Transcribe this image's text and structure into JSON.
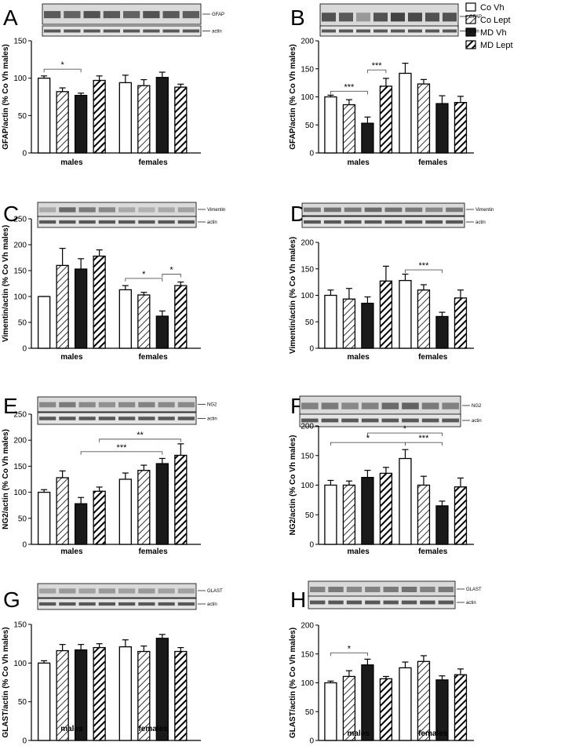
{
  "legend": [
    "Co Vh",
    "Co Lept",
    "MD Vh",
    "MD Lept"
  ],
  "colors": {
    "bar_stroke": "#000000",
    "md_fill": "#1a1a1a",
    "blot_band": "#3a3a3a",
    "blot_bg": "#d9d9d9"
  },
  "chart_data": [
    {
      "panel": "A",
      "type": "bar",
      "protein_label": "GFAP",
      "actin_label": "actin",
      "ylabel": "GFAP/actin (% Co Vh males)",
      "ylim": [
        0,
        150
      ],
      "yticks": [
        0,
        50,
        100,
        150
      ],
      "categories": [
        "males",
        "females"
      ],
      "series": [
        {
          "name": "Co Vh",
          "values": [
            100,
            94
          ],
          "errors": [
            3,
            10
          ]
        },
        {
          "name": "Co Lept",
          "values": [
            82,
            90
          ],
          "errors": [
            5,
            8
          ]
        },
        {
          "name": "MD Vh",
          "values": [
            77,
            101
          ],
          "errors": [
            3,
            7
          ]
        },
        {
          "name": "MD Lept",
          "values": [
            97,
            88
          ],
          "errors": [
            6,
            4
          ]
        }
      ],
      "significance": [
        {
          "group": 0,
          "from": 0,
          "to": 2,
          "label": "*",
          "y": 112
        }
      ],
      "blot_bands": [
        0.8,
        0.75,
        0.85,
        0.8,
        0.75,
        0.85,
        0.8,
        0.78
      ]
    },
    {
      "panel": "B",
      "type": "bar",
      "protein_label": "GFAP",
      "actin_label": "actin",
      "ylabel": "GFAP/actin (% Co Vh males)",
      "ylim": [
        0,
        200
      ],
      "yticks": [
        0,
        50,
        100,
        150,
        200
      ],
      "categories": [
        "males",
        "females"
      ],
      "series": [
        {
          "name": "Co Vh",
          "values": [
            100,
            142
          ],
          "errors": [
            3,
            18
          ]
        },
        {
          "name": "Co Lept",
          "values": [
            86,
            123
          ],
          "errors": [
            9,
            8
          ]
        },
        {
          "name": "MD Vh",
          "values": [
            53,
            88
          ],
          "errors": [
            11,
            14
          ]
        },
        {
          "name": "MD Lept",
          "values": [
            119,
            90
          ],
          "errors": [
            14,
            11
          ]
        }
      ],
      "significance": [
        {
          "group": 0,
          "from": 0,
          "to": 2,
          "label": "***",
          "y": 110
        },
        {
          "group": 0,
          "from": 2,
          "to": 3,
          "label": "***",
          "y": 148
        }
      ],
      "blot_bands": [
        0.85,
        0.8,
        0.4,
        0.85,
        0.95,
        0.9,
        0.85,
        0.85
      ]
    },
    {
      "panel": "C",
      "type": "bar",
      "protein_label": "Vimentin",
      "actin_label": "actin",
      "ylabel": "Vimentin/actin (% Co Vh males)",
      "ylim": [
        0,
        250
      ],
      "yticks": [
        0,
        50,
        100,
        150,
        200,
        250
      ],
      "categories": [
        "males",
        "females"
      ],
      "series": [
        {
          "name": "Co Vh",
          "values": [
            100,
            113
          ],
          "errors": [
            0,
            8
          ]
        },
        {
          "name": "Co Lept",
          "values": [
            160,
            103
          ],
          "errors": [
            33,
            5
          ]
        },
        {
          "name": "MD Vh",
          "values": [
            153,
            62
          ],
          "errors": [
            20,
            10
          ]
        },
        {
          "name": "MD Lept",
          "values": [
            178,
            121
          ],
          "errors": [
            12,
            7
          ]
        }
      ],
      "significance": [
        {
          "group": 1,
          "from": 0,
          "to": 2,
          "label": "*",
          "y": 135
        },
        {
          "group": 1,
          "from": 2,
          "to": 3,
          "label": "*",
          "y": 143
        }
      ],
      "blot_bands": [
        0.3,
        0.7,
        0.6,
        0.5,
        0.3,
        0.25,
        0.3,
        0.35
      ]
    },
    {
      "panel": "D",
      "type": "bar",
      "protein_label": "Vimentin",
      "actin_label": "actin",
      "ylabel": "Vimentin/actin (%  Co Vh males)",
      "ylim": [
        0,
        200
      ],
      "yticks": [
        0,
        50,
        100,
        150,
        200
      ],
      "categories": [
        "males",
        "females"
      ],
      "series": [
        {
          "name": "Co Vh",
          "values": [
            100,
            128
          ],
          "errors": [
            10,
            12
          ]
        },
        {
          "name": "Co Lept",
          "values": [
            93,
            110
          ],
          "errors": [
            20,
            10
          ]
        },
        {
          "name": "MD Vh",
          "values": [
            85,
            60
          ],
          "errors": [
            12,
            8
          ]
        },
        {
          "name": "MD Lept",
          "values": [
            127,
            95
          ],
          "errors": [
            28,
            15
          ]
        }
      ],
      "significance": [
        {
          "group": 1,
          "from": 0,
          "to": 2,
          "label": "***",
          "y": 148
        }
      ],
      "blot_bands": [
        0.6,
        0.65,
        0.6,
        0.7,
        0.65,
        0.6,
        0.5,
        0.6
      ]
    },
    {
      "panel": "E",
      "type": "bar",
      "protein_label": "NG2",
      "actin_label": "actin",
      "ylabel": "NG2/actin (% Co Vh males)",
      "ylim": [
        0,
        250
      ],
      "yticks": [
        0,
        50,
        100,
        150,
        200,
        250
      ],
      "categories": [
        "males",
        "females"
      ],
      "series": [
        {
          "name": "Co Vh",
          "values": [
            100,
            125
          ],
          "errors": [
            5,
            12
          ]
        },
        {
          "name": "Co Lept",
          "values": [
            128,
            142
          ],
          "errors": [
            13,
            10
          ]
        },
        {
          "name": "MD Vh",
          "values": [
            78,
            155
          ],
          "errors": [
            12,
            10
          ]
        },
        {
          "name": "MD Lept",
          "values": [
            102,
            171
          ],
          "errors": [
            8,
            22
          ]
        }
      ],
      "significance": [
        {
          "cross": true,
          "from": [
            0,
            2
          ],
          "to": [
            1,
            2
          ],
          "label": "***",
          "y": 178
        },
        {
          "cross": true,
          "from": [
            0,
            3
          ],
          "to": [
            1,
            3
          ],
          "label": "**",
          "y": 202
        }
      ],
      "blot_bands": [
        0.5,
        0.6,
        0.5,
        0.45,
        0.5,
        0.55,
        0.5,
        0.5
      ]
    },
    {
      "panel": "F",
      "type": "bar",
      "protein_label": "NG2",
      "actin_label": "actin",
      "ylabel": "NG2/actin (%  Co Vh males)",
      "ylim": [
        0,
        200
      ],
      "yticks": [
        0,
        50,
        100,
        150,
        200
      ],
      "categories": [
        "males",
        "females"
      ],
      "series": [
        {
          "name": "Co Vh",
          "values": [
            100,
            145
          ],
          "errors": [
            8,
            15
          ]
        },
        {
          "name": "Co Lept",
          "values": [
            100,
            100
          ],
          "errors": [
            7,
            15
          ]
        },
        {
          "name": "MD Vh",
          "values": [
            113,
            65
          ],
          "errors": [
            12,
            8
          ]
        },
        {
          "name": "MD Lept",
          "values": [
            120,
            97
          ],
          "errors": [
            10,
            15
          ]
        }
      ],
      "significance": [
        {
          "cross": true,
          "from": [
            0,
            0
          ],
          "to": [
            1,
            0
          ],
          "label": "*",
          "y": 172
        },
        {
          "cross": true,
          "from": [
            0,
            2
          ],
          "to": [
            1,
            2
          ],
          "label": "*",
          "y": 188
        },
        {
          "group": 1,
          "from": 0,
          "to": 2,
          "label": "***",
          "y": 172
        }
      ],
      "blot_bands": [
        0.55,
        0.6,
        0.5,
        0.55,
        0.7,
        0.75,
        0.6,
        0.55
      ]
    },
    {
      "panel": "G",
      "type": "bar",
      "protein_label": "GLAST",
      "actin_label": "actin",
      "ylabel": "GLAST/actin (% Co Vh males)",
      "ylim": [
        0,
        150
      ],
      "yticks": [
        0,
        50,
        100,
        150
      ],
      "categories": [
        "males",
        "females"
      ],
      "series": [
        {
          "name": "Co Vh",
          "values": [
            100,
            121
          ],
          "errors": [
            3,
            9
          ]
        },
        {
          "name": "Co Lept",
          "values": [
            116,
            115
          ],
          "errors": [
            8,
            7
          ]
        },
        {
          "name": "MD Vh",
          "values": [
            117,
            132
          ],
          "errors": [
            7,
            5
          ]
        },
        {
          "name": "MD Lept",
          "values": [
            120,
            115
          ],
          "errors": [
            5,
            5
          ]
        }
      ],
      "significance": [],
      "blot_bands": [
        0.35,
        0.4,
        0.35,
        0.4,
        0.35,
        0.4,
        0.35,
        0.35
      ]
    },
    {
      "panel": "H",
      "type": "bar",
      "protein_label": "GLAST",
      "actin_label": "actin",
      "ylabel": "GLAST/actin (%  Co Vh males)",
      "ylim": [
        0,
        200
      ],
      "yticks": [
        0,
        50,
        100,
        150,
        200
      ],
      "categories": [
        "males",
        "females"
      ],
      "series": [
        {
          "name": "Co Vh",
          "values": [
            100,
            126
          ],
          "errors": [
            3,
            10
          ]
        },
        {
          "name": "Co Lept",
          "values": [
            111,
            137
          ],
          "errors": [
            10,
            10
          ]
        },
        {
          "name": "MD Vh",
          "values": [
            131,
            105
          ],
          "errors": [
            10,
            7
          ]
        },
        {
          "name": "MD Lept",
          "values": [
            107,
            114
          ],
          "errors": [
            4,
            10
          ]
        }
      ],
      "significance": [
        {
          "group": 0,
          "from": 0,
          "to": 2,
          "label": "*",
          "y": 152
        }
      ],
      "blot_bands": [
        0.55,
        0.6,
        0.5,
        0.55,
        0.6,
        0.65,
        0.55,
        0.6
      ]
    }
  ]
}
